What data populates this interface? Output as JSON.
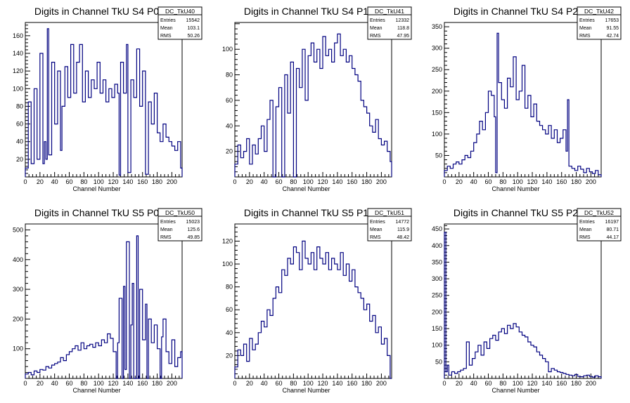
{
  "panels": [
    {
      "title": "Digits in Channel TkU S4 P0",
      "stats": {
        "name": "DC_TkU40",
        "entries_label": "Entries",
        "entries": "15542",
        "mean_label": "Mean",
        "mean": "103.1",
        "rms_label": "RMS",
        "rms": "50.26"
      },
      "xlabel": "Channel Number"
    },
    {
      "title": "Digits in Channel TkU S4 P1",
      "stats": {
        "name": "DC_TkU41",
        "entries_label": "Entries",
        "entries": "12332",
        "mean_label": "Mean",
        "mean": "118.8",
        "rms_label": "RMS",
        "rms": "47.95"
      },
      "xlabel": "Channel Number"
    },
    {
      "title": "Digits in Channel TkU S4 P2",
      "stats": {
        "name": "DC_TkU42",
        "entries_label": "Entries",
        "entries": "17653",
        "mean_label": "Mean",
        "mean": "91.55",
        "rms_label": "RMS",
        "rms": "42.74"
      },
      "xlabel": "Channel Number"
    },
    {
      "title": "Digits in Channel TkU S5 P0",
      "stats": {
        "name": "DC_TkU50",
        "entries_label": "Entries",
        "entries": "15023",
        "mean_label": "Mean",
        "mean": "125.6",
        "rms_label": "RMS",
        "rms": "49.85"
      },
      "xlabel": "Channel Number"
    },
    {
      "title": "Digits in Channel TkU S5 P1",
      "stats": {
        "name": "DC_TkU51",
        "entries_label": "Entries",
        "entries": "14772",
        "mean_label": "Mean",
        "mean": "115.9",
        "rms_label": "RMS",
        "rms": "48.42"
      },
      "xlabel": "Channel Number"
    },
    {
      "title": "Digits in Channel TkU S5 P2",
      "stats": {
        "name": "DC_TkU52",
        "entries_label": "Entries",
        "entries": "16197",
        "mean_label": "Mean",
        "mean": "80.71",
        "rms_label": "RMS",
        "rms": "44.17"
      },
      "xlabel": "Channel Number"
    }
  ],
  "chart_data": [
    {
      "type": "histogram",
      "title": "Digits in Channel TkU S4 P0",
      "xlabel": "Channel Number",
      "ylabel": "",
      "xlim": [
        0,
        214
      ],
      "ylim": [
        0,
        175
      ],
      "xticks": [
        0,
        20,
        40,
        60,
        80,
        100,
        120,
        140,
        160,
        180,
        200
      ],
      "yticks": [
        20,
        40,
        60,
        80,
        100,
        120,
        140,
        160
      ],
      "bin_width": 1,
      "line_color": "#000080",
      "x": [
        0,
        4,
        8,
        12,
        16,
        20,
        24,
        26,
        28,
        30,
        32,
        36,
        40,
        44,
        48,
        50,
        54,
        58,
        62,
        66,
        70,
        74,
        78,
        82,
        86,
        90,
        94,
        98,
        102,
        106,
        110,
        114,
        118,
        122,
        126,
        128,
        130,
        134,
        138,
        140,
        144,
        148,
        152,
        156,
        160,
        164,
        168,
        172,
        176,
        180,
        184,
        188,
        192,
        196,
        200,
        204,
        208,
        212
      ],
      "values": [
        10,
        85,
        15,
        100,
        20,
        140,
        15,
        40,
        20,
        168,
        25,
        130,
        60,
        120,
        30,
        80,
        125,
        90,
        150,
        95,
        130,
        150,
        85,
        120,
        90,
        110,
        100,
        130,
        95,
        110,
        85,
        100,
        90,
        105,
        95,
        2,
        130,
        95,
        150,
        5,
        110,
        90,
        145,
        80,
        120,
        3,
        85,
        60,
        95,
        50,
        40,
        60,
        45,
        40,
        35,
        30,
        40,
        10
      ]
    },
    {
      "type": "histogram",
      "title": "Digits in Channel TkU S4 P1",
      "xlabel": "Channel Number",
      "ylabel": "",
      "xlim": [
        0,
        214
      ],
      "ylim": [
        0,
        121
      ],
      "xticks": [
        0,
        20,
        40,
        60,
        80,
        100,
        120,
        140,
        160,
        180,
        200
      ],
      "yticks": [
        20,
        40,
        60,
        80,
        100
      ],
      "bin_width": 1,
      "line_color": "#000080",
      "x": [
        0,
        4,
        8,
        12,
        16,
        20,
        24,
        28,
        32,
        36,
        40,
        44,
        48,
        52,
        56,
        60,
        64,
        68,
        72,
        76,
        80,
        84,
        88,
        92,
        96,
        100,
        104,
        108,
        112,
        116,
        120,
        124,
        128,
        132,
        136,
        140,
        144,
        148,
        152,
        156,
        160,
        164,
        168,
        172,
        176,
        180,
        184,
        188,
        192,
        196,
        200,
        204,
        208,
        212
      ],
      "values": [
        10,
        25,
        15,
        20,
        30,
        10,
        25,
        18,
        30,
        40,
        20,
        45,
        60,
        0,
        55,
        70,
        0,
        80,
        50,
        90,
        0,
        85,
        70,
        100,
        60,
        95,
        105,
        90,
        100,
        85,
        110,
        95,
        100,
        90,
        105,
        112,
        95,
        100,
        90,
        95,
        85,
        80,
        75,
        60,
        55,
        50,
        40,
        35,
        45,
        30,
        25,
        28,
        20,
        12
      ]
    },
    {
      "type": "histogram",
      "title": "Digits in Channel TkU S4 P2",
      "xlabel": "Channel Number",
      "ylabel": "",
      "xlim": [
        0,
        214
      ],
      "ylim": [
        0,
        360
      ],
      "xticks": [
        0,
        20,
        40,
        60,
        80,
        100,
        120,
        140,
        160,
        180,
        200
      ],
      "yticks": [
        50,
        100,
        150,
        200,
        250,
        300,
        350
      ],
      "bin_width": 1,
      "line_color": "#000080",
      "x": [
        0,
        4,
        8,
        12,
        16,
        20,
        24,
        28,
        32,
        36,
        40,
        44,
        48,
        52,
        56,
        60,
        64,
        68,
        70,
        72,
        74,
        78,
        82,
        86,
        90,
        94,
        98,
        102,
        106,
        110,
        114,
        118,
        122,
        126,
        130,
        134,
        138,
        142,
        146,
        150,
        154,
        158,
        162,
        166,
        168,
        170,
        174,
        178,
        182,
        186,
        190,
        194,
        198,
        202,
        206,
        210,
        214
      ],
      "values": [
        15,
        25,
        20,
        30,
        35,
        30,
        40,
        50,
        45,
        60,
        80,
        100,
        130,
        110,
        150,
        200,
        190,
        140,
        10,
        335,
        220,
        180,
        160,
        230,
        210,
        280,
        180,
        200,
        260,
        160,
        190,
        140,
        170,
        130,
        120,
        110,
        100,
        120,
        90,
        110,
        80,
        90,
        110,
        60,
        180,
        25,
        20,
        15,
        25,
        18,
        10,
        20,
        12,
        8,
        15,
        5,
        2
      ]
    },
    {
      "type": "histogram",
      "title": "Digits in Channel TkU S5 P0",
      "xlabel": "Channel Number",
      "ylabel": "",
      "xlim": [
        0,
        214
      ],
      "ylim": [
        0,
        520
      ],
      "xticks": [
        0,
        20,
        40,
        60,
        80,
        100,
        120,
        140,
        160,
        180,
        200
      ],
      "yticks": [
        100,
        200,
        300,
        400,
        500
      ],
      "bin_width": 1,
      "line_color": "#000080",
      "x": [
        0,
        4,
        8,
        12,
        16,
        20,
        24,
        28,
        32,
        36,
        40,
        44,
        48,
        52,
        56,
        60,
        64,
        68,
        72,
        76,
        80,
        84,
        88,
        92,
        96,
        100,
        104,
        108,
        112,
        116,
        120,
        124,
        126,
        128,
        132,
        134,
        136,
        138,
        142,
        144,
        146,
        148,
        152,
        154,
        156,
        160,
        164,
        166,
        168,
        172,
        176,
        180,
        184,
        186,
        188,
        192,
        196,
        200,
        204,
        208,
        212
      ],
      "values": [
        15,
        20,
        12,
        25,
        20,
        30,
        28,
        40,
        35,
        45,
        50,
        55,
        70,
        60,
        80,
        90,
        100,
        110,
        95,
        120,
        100,
        110,
        115,
        105,
        120,
        110,
        130,
        120,
        150,
        135,
        90,
        0,
        120,
        270,
        0,
        310,
        30,
        460,
        0,
        180,
        320,
        0,
        480,
        0,
        300,
        130,
        250,
        0,
        200,
        120,
        180,
        100,
        0,
        140,
        200,
        90,
        50,
        130,
        40,
        70,
        90
      ]
    },
    {
      "type": "histogram",
      "title": "Digits in Channel TkU S5 P1",
      "xlabel": "Channel Number",
      "ylabel": "",
      "xlim": [
        0,
        214
      ],
      "ylim": [
        0,
        135
      ],
      "xticks": [
        0,
        20,
        40,
        60,
        80,
        100,
        120,
        140,
        160,
        180,
        200
      ],
      "yticks": [
        20,
        40,
        60,
        80,
        100,
        120
      ],
      "bin_width": 1,
      "line_color": "#000080",
      "x": [
        0,
        4,
        8,
        12,
        16,
        20,
        24,
        28,
        32,
        36,
        40,
        44,
        48,
        52,
        56,
        60,
        64,
        68,
        72,
        76,
        80,
        84,
        88,
        92,
        96,
        100,
        104,
        108,
        112,
        116,
        120,
        124,
        128,
        132,
        136,
        140,
        144,
        148,
        152,
        156,
        160,
        164,
        168,
        172,
        176,
        180,
        184,
        188,
        192,
        196,
        200,
        204,
        208,
        212
      ],
      "values": [
        10,
        25,
        20,
        30,
        15,
        35,
        25,
        30,
        40,
        50,
        45,
        60,
        55,
        70,
        80,
        75,
        95,
        90,
        105,
        100,
        115,
        110,
        95,
        120,
        105,
        100,
        110,
        95,
        115,
        105,
        100,
        110,
        95,
        105,
        100,
        95,
        110,
        90,
        100,
        85,
        95,
        80,
        75,
        70,
        60,
        65,
        50,
        55,
        40,
        45,
        30,
        35,
        20,
        0
      ]
    },
    {
      "type": "histogram",
      "title": "Digits in Channel TkU S5 P2",
      "xlabel": "Channel Number",
      "ylabel": "",
      "xlim": [
        0,
        214
      ],
      "ylim": [
        0,
        465
      ],
      "xticks": [
        0,
        20,
        40,
        60,
        80,
        100,
        120,
        140,
        160,
        180,
        200
      ],
      "yticks": [
        50,
        100,
        150,
        200,
        250,
        300,
        350,
        400,
        450
      ],
      "bin_width": 1,
      "line_color": "#000080",
      "x": [
        0,
        2,
        4,
        6,
        10,
        14,
        18,
        22,
        26,
        30,
        34,
        38,
        42,
        46,
        50,
        54,
        58,
        62,
        66,
        70,
        74,
        78,
        82,
        86,
        90,
        94,
        98,
        102,
        106,
        110,
        114,
        118,
        122,
        126,
        130,
        134,
        138,
        142,
        146,
        150,
        154,
        158,
        162,
        166,
        170,
        174,
        178,
        182,
        186,
        190,
        194,
        198,
        202,
        206,
        210,
        214
      ],
      "values": [
        440,
        20,
        40,
        10,
        20,
        15,
        20,
        25,
        30,
        110,
        40,
        60,
        80,
        100,
        70,
        110,
        90,
        120,
        130,
        115,
        140,
        150,
        135,
        160,
        150,
        165,
        155,
        140,
        130,
        125,
        110,
        100,
        95,
        80,
        70,
        60,
        50,
        20,
        30,
        25,
        20,
        18,
        15,
        12,
        10,
        8,
        12,
        6,
        5,
        8,
        10,
        6,
        4,
        8,
        5,
        2
      ]
    }
  ]
}
